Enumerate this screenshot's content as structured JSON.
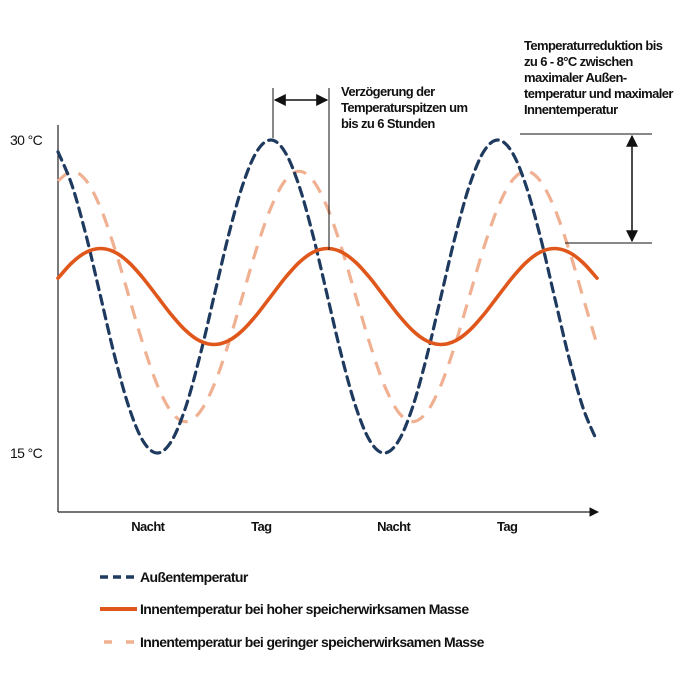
{
  "chart_data": {
    "type": "line",
    "xlabel": "",
    "ylabel": "",
    "x_unit": "hours",
    "xlim": [
      0,
      57
    ],
    "ylim": [
      15,
      30
    ],
    "y_ticks": [
      "30 °C",
      "15 °C"
    ],
    "y_tick_values": [
      30,
      15
    ],
    "x_ticks": [
      "Nacht",
      "Tag",
      "Nacht",
      "Tag"
    ],
    "x_tick_values": [
      9.5,
      21.5,
      35.5,
      47.5
    ],
    "grid": false,
    "legend_placement": "bottom",
    "x": [
      0,
      1.5,
      3,
      4.5,
      6,
      7.5,
      9,
      10.5,
      12,
      13.5,
      15,
      16.5,
      18,
      19.5,
      21,
      22.5,
      24,
      25.5,
      27,
      28.5,
      30,
      31.5,
      33,
      34.5,
      36,
      37.5,
      39,
      40.5,
      42,
      43.5,
      45,
      46.5,
      48,
      49.5,
      51,
      52.5,
      54,
      55.5,
      57
    ],
    "series": [
      {
        "name": "Außentemperatur",
        "color": "#1f3a5f",
        "style": "dashed",
        "values": [
          29.43,
          27.8,
          25.37,
          22.5,
          19.63,
          17.2,
          15.57,
          15,
          15.57,
          17.2,
          19.63,
          22.5,
          25.37,
          27.8,
          29.43,
          30,
          29.43,
          27.8,
          25.37,
          22.5,
          19.63,
          17.2,
          15.57,
          15,
          15.57,
          17.2,
          19.63,
          22.5,
          25.37,
          27.8,
          29.43,
          30,
          29.43,
          27.8,
          25.37,
          22.5,
          19.63,
          17.2,
          15.57
        ]
      },
      {
        "name": "Innentemperatur bei hoher speicherwirksamen Masse",
        "color": "#e0571c",
        "style": "solid",
        "values": [
          23.38,
          24.13,
          24.63,
          24.8,
          24.63,
          24.13,
          23.38,
          22.5,
          21.62,
          20.87,
          20.37,
          20.2,
          20.37,
          20.87,
          21.62,
          22.5,
          23.38,
          24.13,
          24.63,
          24.8,
          24.63,
          24.13,
          23.38,
          22.5,
          21.62,
          20.87,
          20.37,
          20.2,
          20.37,
          20.87,
          21.62,
          22.5,
          23.38,
          24.13,
          24.63,
          24.8,
          24.63,
          24.13,
          23.38
        ]
      },
      {
        "name": "Innentemperatur bei geringer speicherwirksamen Masse",
        "color": "#f0b092",
        "style": "dashed",
        "values": [
          28.04,
          28.5,
          28.04,
          26.74,
          24.8,
          22.5,
          20.2,
          18.26,
          16.96,
          16.5,
          16.96,
          18.26,
          20.2,
          22.5,
          24.8,
          26.74,
          28.04,
          28.5,
          28.04,
          26.74,
          24.8,
          22.5,
          20.2,
          18.26,
          16.96,
          16.5,
          16.96,
          18.26,
          20.2,
          22.5,
          24.8,
          26.74,
          28.04,
          28.5,
          28.04,
          26.74,
          24.8,
          22.5,
          20.2
        ]
      }
    ],
    "annotations": [
      [
        "Verzögerung der",
        "Temperaturspitzen um",
        "bis zu 6 Stunden"
      ],
      [
        "Temperaturreduktion bis",
        "zu 6 - 8°C zwischen",
        "maximaler Außen-",
        "temperatur und maximaler",
        "Innentemperatur"
      ]
    ]
  }
}
